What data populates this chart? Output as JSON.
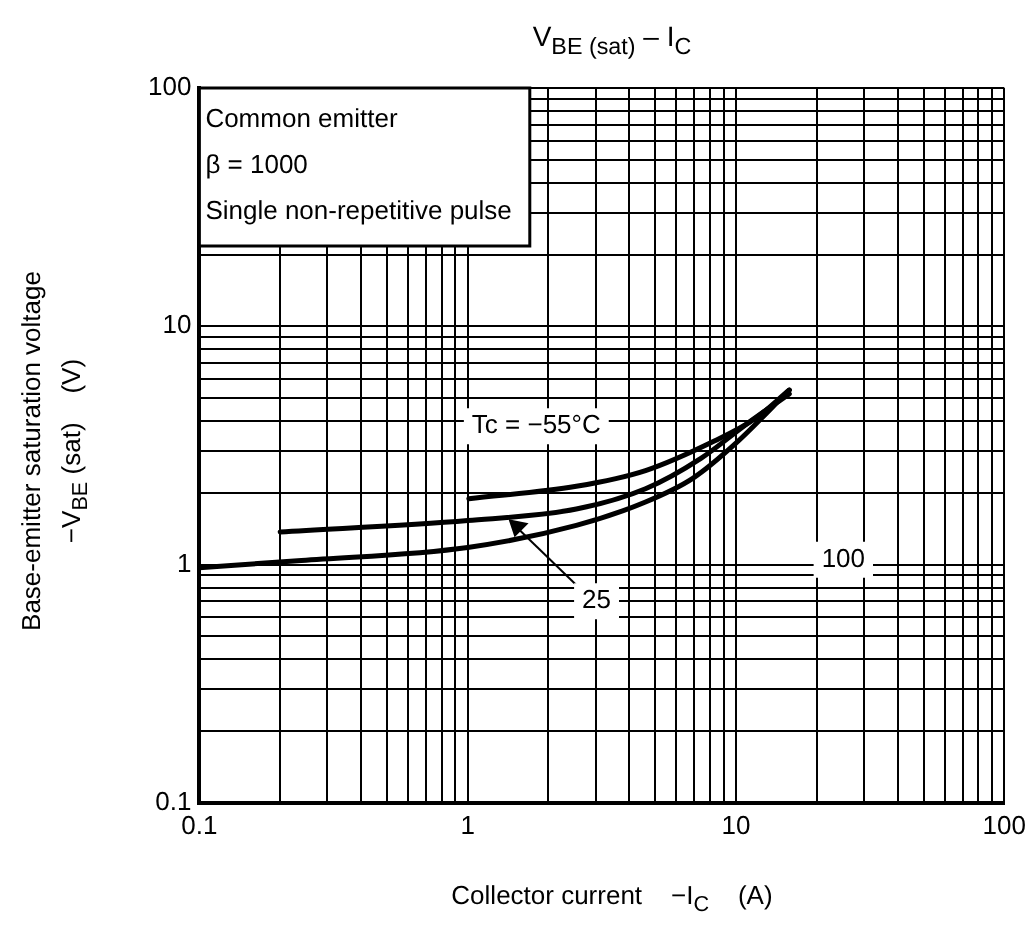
{
  "chart_data": {
    "type": "line",
    "title": "V$_{BE (sat)}$ – I$_{C}$",
    "xlabel": "Collector current    −I$_{C}$    (A)",
    "ylabel": "Base-emitter saturation voltage\n−V$_{BE}$ (sat)    (V)",
    "log": "xy",
    "grid": true,
    "legend": false,
    "marker": "none",
    "line_style": "solid",
    "xlim": [
      0.1,
      100
    ],
    "ylim": [
      0.1,
      100
    ],
    "xticks": [
      0.1,
      {
        "value": 0.2,
        "label": null
      },
      {
        "value": 0.3,
        "label": null
      },
      {
        "value": 0.4,
        "label": null
      },
      {
        "value": 0.5,
        "label": null
      },
      {
        "value": 0.6,
        "label": null
      },
      {
        "value": 0.7,
        "label": null
      },
      {
        "value": 0.8,
        "label": null
      },
      {
        "value": 0.9,
        "label": null
      },
      1,
      {
        "value": 2,
        "label": null
      },
      {
        "value": 3,
        "label": null
      },
      {
        "value": 4,
        "label": null
      },
      {
        "value": 5,
        "label": null
      },
      {
        "value": 6,
        "label": null
      },
      {
        "value": 7,
        "label": null
      },
      {
        "value": 8,
        "label": null
      },
      {
        "value": 9,
        "label": null
      },
      10,
      {
        "value": 20,
        "label": null
      },
      {
        "value": 30,
        "label": null
      },
      {
        "value": 40,
        "label": null
      },
      {
        "value": 50,
        "label": null
      },
      {
        "value": 60,
        "label": null
      },
      {
        "value": 70,
        "label": null
      },
      {
        "value": 80,
        "label": null
      },
      {
        "value": 90,
        "label": null
      },
      100
    ],
    "yticks": [
      0.1,
      {
        "value": 0.2,
        "label": null
      },
      {
        "value": 0.3,
        "label": null
      },
      {
        "value": 0.4,
        "label": null
      },
      {
        "value": 0.5,
        "label": null
      },
      {
        "value": 0.6,
        "label": null
      },
      {
        "value": 0.7,
        "label": null
      },
      {
        "value": 0.8,
        "label": null
      },
      {
        "value": 0.9,
        "label": null
      },
      1,
      {
        "value": 2,
        "label": null
      },
      {
        "value": 3,
        "label": null
      },
      {
        "value": 4,
        "label": null
      },
      {
        "value": 5,
        "label": null
      },
      {
        "value": 6,
        "label": null
      },
      {
        "value": 7,
        "label": null
      },
      {
        "value": 8,
        "label": null
      },
      {
        "value": 9,
        "label": null
      },
      10,
      {
        "value": 20,
        "label": null
      },
      {
        "value": 30,
        "label": null
      },
      {
        "value": 40,
        "label": null
      },
      {
        "value": 50,
        "label": null
      },
      {
        "value": 60,
        "label": null
      },
      {
        "value": 70,
        "label": null
      },
      {
        "value": 80,
        "label": null
      },
      {
        "value": 90,
        "label": null
      },
      100
    ],
    "series": [
      {
        "color": "#000000",
        "x": [
          1.01,
          2.54,
          4.6,
          8.3,
          11.8,
          15.8
        ],
        "values": [
          1.89,
          2.13,
          2.48,
          3.3,
          4.1,
          5.4
        ]
      },
      {
        "color": "#000000",
        "x": [
          0.2,
          1,
          2.54,
          4.6,
          7.4,
          11,
          15.8
        ],
        "values": [
          1.37,
          1.53,
          1.71,
          2.08,
          2.79,
          3.9,
          5.2
        ]
      },
      {
        "color": "#000000",
        "x": [
          0.1,
          0.24,
          1,
          2.54,
          4.6,
          6.9,
          9.9,
          15.8
        ],
        "values": [
          0.97,
          1.04,
          1.18,
          1.46,
          1.83,
          2.3,
          3.2,
          5.4
        ]
      }
    ],
    "annotations": [
      "Common emitter",
      "β = 1000",
      "Single non-repetitive pulse",
      {
        "text": "Tc = −55°C",
        "x": 2.54,
        "y": 2.13
      },
      {
        "text": "25",
        "x": 1.42,
        "y": 1.55
      },
      "100"
    ]
  }
}
